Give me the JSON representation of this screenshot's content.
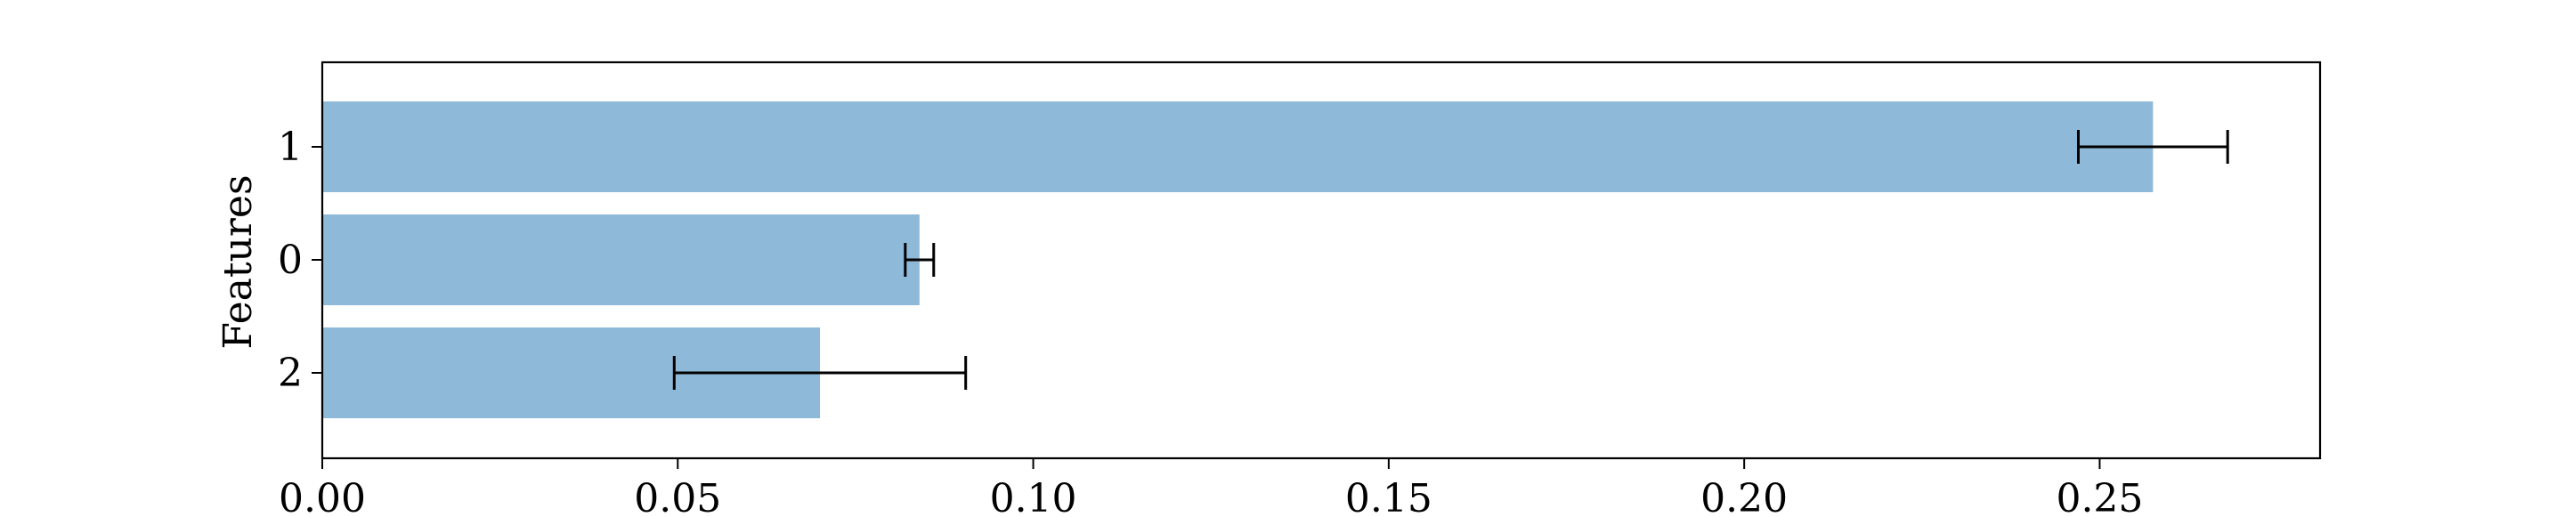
{
  "chart_data": {
    "type": "bar",
    "orientation": "horizontal",
    "categories": [
      "1",
      "0",
      "2"
    ],
    "values": [
      0.2575,
      0.084,
      0.07
    ],
    "error": [
      0.0105,
      0.002,
      0.0205
    ],
    "xlabel": "",
    "ylabel": "Features",
    "xlim": [
      0.0,
      0.281
    ],
    "xticks": [
      "0.00",
      "0.05",
      "0.10",
      "0.15",
      "0.20",
      "0.25"
    ],
    "grid": false,
    "bar_color": "#8fb9d9",
    "errorbar_color": "#000000"
  }
}
